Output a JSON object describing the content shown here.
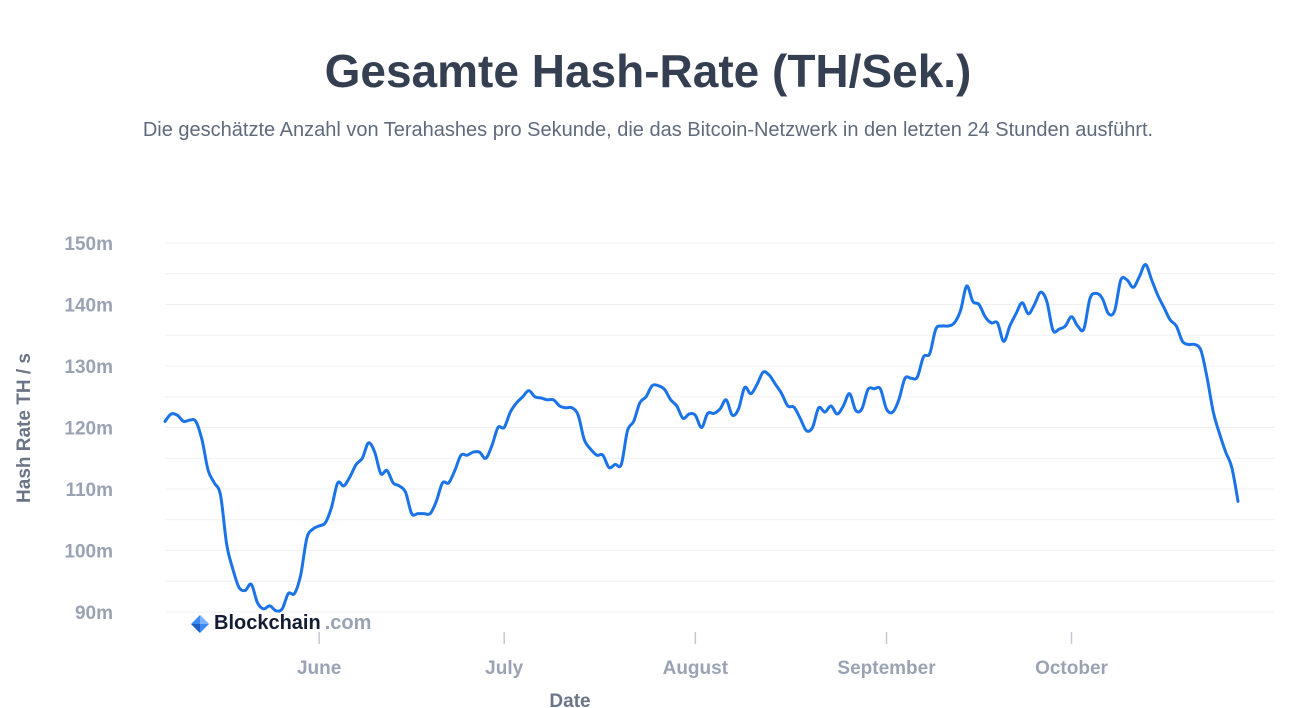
{
  "header": {
    "title": "Gesamte Hash-Rate (TH/Sek.)",
    "subtitle": "Die geschätzte Anzahl von Terahashes pro Sekunde, die das Bitcoin-Netzwerk in den letzten 24 Stunden ausführt."
  },
  "brand": {
    "name": "Blockchain",
    "suffix": ".com",
    "icon": "blockchain-logo-icon"
  },
  "colors": {
    "line": "#1a73e8",
    "grid": "#eef0f3",
    "text": "#353f52",
    "tick": "#9aa3b3"
  },
  "chart_data": {
    "type": "line",
    "title": "Gesamte Hash-Rate (TH/Sek.)",
    "xlabel": "Date",
    "ylabel": "Hash Rate TH / s",
    "ylim": [
      89,
      151
    ],
    "yticks": [
      {
        "value": 90,
        "label": "90m"
      },
      {
        "value": 100,
        "label": "100m"
      },
      {
        "value": 110,
        "label": "110m"
      },
      {
        "value": 120,
        "label": "120m"
      },
      {
        "value": 130,
        "label": "130m"
      },
      {
        "value": 140,
        "label": "140m"
      },
      {
        "value": 150,
        "label": "150m"
      }
    ],
    "xlim": [
      0,
      180
    ],
    "xticks": [
      {
        "value": 25,
        "label": "June"
      },
      {
        "value": 55,
        "label": "July"
      },
      {
        "value": 86,
        "label": "August"
      },
      {
        "value": 117,
        "label": "September"
      },
      {
        "value": 147,
        "label": "October"
      }
    ],
    "series": [
      {
        "name": "Hash Rate",
        "points": [
          [
            0,
            121
          ],
          [
            1,
            122.2
          ],
          [
            2,
            122
          ],
          [
            3,
            121
          ],
          [
            4,
            121.2
          ],
          [
            5,
            121
          ],
          [
            6,
            118
          ],
          [
            7,
            113
          ],
          [
            8,
            111
          ],
          [
            9,
            109
          ],
          [
            10,
            101
          ],
          [
            11,
            97
          ],
          [
            12,
            94
          ],
          [
            13,
            93.5
          ],
          [
            14,
            94.5
          ],
          [
            15,
            91.5
          ],
          [
            16,
            90.5
          ],
          [
            17,
            91
          ],
          [
            18,
            90.2
          ],
          [
            19,
            90.5
          ],
          [
            20,
            93
          ],
          [
            21,
            93
          ],
          [
            22,
            96
          ],
          [
            23,
            102
          ],
          [
            24,
            103.5
          ],
          [
            25,
            104
          ],
          [
            26,
            104.5
          ],
          [
            27,
            107
          ],
          [
            28,
            111
          ],
          [
            29,
            110.5
          ],
          [
            30,
            112
          ],
          [
            31,
            114
          ],
          [
            32,
            115
          ],
          [
            33,
            117.5
          ],
          [
            34,
            116
          ],
          [
            35,
            112.5
          ],
          [
            36,
            113
          ],
          [
            37,
            111
          ],
          [
            38,
            110.5
          ],
          [
            39,
            109.5
          ],
          [
            40,
            106
          ],
          [
            41,
            106
          ],
          [
            42,
            106
          ],
          [
            43,
            106
          ],
          [
            44,
            108
          ],
          [
            45,
            111
          ],
          [
            46,
            111
          ],
          [
            47,
            113
          ],
          [
            48,
            115.5
          ],
          [
            49,
            115.5
          ],
          [
            50,
            116
          ],
          [
            51,
            116
          ],
          [
            52,
            115
          ],
          [
            53,
            117
          ],
          [
            54,
            120
          ],
          [
            55,
            120
          ],
          [
            56,
            122.5
          ],
          [
            57,
            124
          ],
          [
            58,
            125
          ],
          [
            59,
            126
          ],
          [
            60,
            125
          ],
          [
            61,
            124.8
          ],
          [
            62,
            124.5
          ],
          [
            63,
            124.5
          ],
          [
            64,
            123.5
          ],
          [
            65,
            123.2
          ],
          [
            66,
            123.2
          ],
          [
            67,
            122
          ],
          [
            68,
            118
          ],
          [
            69,
            116.5
          ],
          [
            70,
            115.5
          ],
          [
            71,
            115.5
          ],
          [
            72,
            113.5
          ],
          [
            73,
            114
          ],
          [
            74,
            114
          ],
          [
            75,
            119.5
          ],
          [
            76,
            121
          ],
          [
            77,
            124
          ],
          [
            78,
            125
          ],
          [
            79,
            126.8
          ],
          [
            80,
            126.8
          ],
          [
            81,
            126.2
          ],
          [
            82,
            124.5
          ],
          [
            83,
            123.5
          ],
          [
            84,
            121.5
          ],
          [
            85,
            122.2
          ],
          [
            86,
            122
          ],
          [
            87,
            120
          ],
          [
            88,
            122.3
          ],
          [
            89,
            122.3
          ],
          [
            90,
            123
          ],
          [
            91,
            124.5
          ],
          [
            92,
            122
          ],
          [
            93,
            123
          ],
          [
            94,
            126.5
          ],
          [
            95,
            125.5
          ],
          [
            96,
            127
          ],
          [
            97,
            129
          ],
          [
            98,
            128.5
          ],
          [
            99,
            127
          ],
          [
            100,
            125.5
          ],
          [
            101,
            123.5
          ],
          [
            102,
            123.3
          ],
          [
            103,
            121.5
          ],
          [
            104,
            119.5
          ],
          [
            105,
            120
          ],
          [
            106,
            123.2
          ],
          [
            107,
            122.5
          ],
          [
            108,
            123.5
          ],
          [
            109,
            122.2
          ],
          [
            110,
            123.5
          ],
          [
            111,
            125.5
          ],
          [
            112,
            122.8
          ],
          [
            113,
            123
          ],
          [
            114,
            126.2
          ],
          [
            115,
            126.3
          ],
          [
            116,
            126.3
          ],
          [
            117,
            123
          ],
          [
            118,
            122.5
          ],
          [
            119,
            124.5
          ],
          [
            120,
            128
          ],
          [
            121,
            128
          ],
          [
            122,
            128.2
          ],
          [
            123,
            131.5
          ],
          [
            124,
            132
          ],
          [
            125,
            136
          ],
          [
            126,
            136.5
          ],
          [
            127,
            136.5
          ],
          [
            128,
            137
          ],
          [
            129,
            139
          ],
          [
            130,
            143
          ],
          [
            131,
            140.5
          ],
          [
            132,
            140
          ],
          [
            133,
            138
          ],
          [
            134,
            137
          ],
          [
            135,
            137
          ],
          [
            136,
            134
          ],
          [
            137,
            136.5
          ],
          [
            138,
            138.5
          ],
          [
            139,
            140.3
          ],
          [
            140,
            138.5
          ],
          [
            141,
            140
          ],
          [
            142,
            142
          ],
          [
            143,
            140.5
          ],
          [
            144,
            135.8
          ],
          [
            145,
            136
          ],
          [
            146,
            136.5
          ],
          [
            147,
            138
          ],
          [
            148,
            136.5
          ],
          [
            149,
            136
          ],
          [
            150,
            141
          ],
          [
            151,
            141.8
          ],
          [
            152,
            141
          ],
          [
            153,
            138.5
          ],
          [
            154,
            139
          ],
          [
            155,
            144
          ],
          [
            156,
            144
          ],
          [
            157,
            142.8
          ],
          [
            158,
            144.5
          ],
          [
            159,
            146.5
          ],
          [
            160,
            144
          ],
          [
            161,
            141.5
          ],
          [
            162,
            139.5
          ],
          [
            163,
            137.5
          ],
          [
            164,
            136.5
          ],
          [
            165,
            134
          ],
          [
            166,
            133.5
          ],
          [
            167,
            133.5
          ],
          [
            168,
            132.5
          ],
          [
            169,
            128
          ],
          [
            170,
            122.5
          ],
          [
            171,
            119
          ],
          [
            172,
            116
          ],
          [
            173,
            113.5
          ],
          [
            174,
            108
          ]
        ]
      }
    ]
  }
}
